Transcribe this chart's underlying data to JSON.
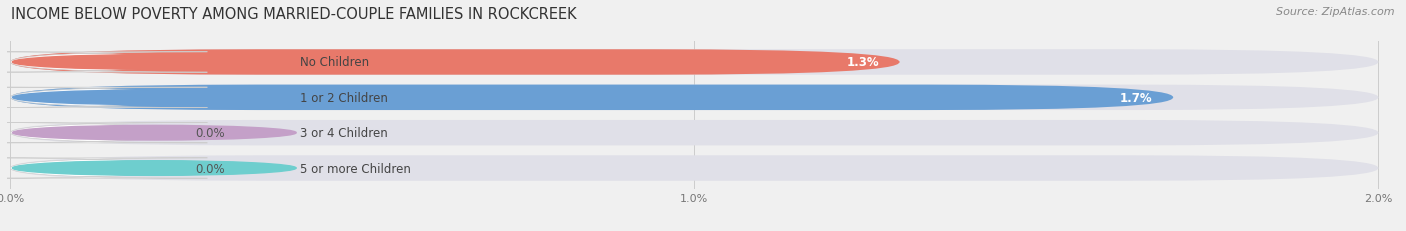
{
  "title": "INCOME BELOW POVERTY AMONG MARRIED-COUPLE FAMILIES IN ROCKCREEK",
  "source": "Source: ZipAtlas.com",
  "categories": [
    "No Children",
    "1 or 2 Children",
    "3 or 4 Children",
    "5 or more Children"
  ],
  "values": [
    1.3,
    1.7,
    0.0,
    0.0
  ],
  "bar_colors": [
    "#E8796A",
    "#6A9FD4",
    "#C4A0C8",
    "#6ECECE"
  ],
  "xlim_max": 2.0,
  "xticks": [
    0.0,
    1.0,
    2.0
  ],
  "xtick_labels": [
    "0.0%",
    "1.0%",
    "2.0%"
  ],
  "background_color": "#f0f0f0",
  "bar_bg_color": "#e0e0e8",
  "bar_height": 0.72,
  "label_box_color": "white",
  "title_fontsize": 10.5,
  "source_fontsize": 8,
  "cat_fontsize": 8.5,
  "val_fontsize": 8.5
}
